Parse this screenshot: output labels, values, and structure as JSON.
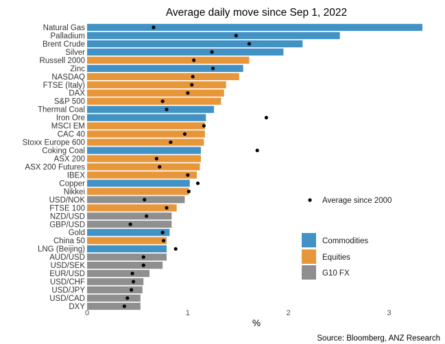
{
  "chart_data": {
    "type": "bar",
    "orientation": "horizontal",
    "title": "Average daily move since Sep 1, 2022",
    "xlabel": "%",
    "ylabel": "",
    "source": "Source: Bloomberg, ANZ Research",
    "xlim": [
      0,
      3.35
    ],
    "xticks": [
      0,
      1,
      2,
      3
    ],
    "grid": false,
    "colors": {
      "Commodities": "#4292c6",
      "Equities": "#e8963a",
      "G10 FX": "#8f8f8f",
      "marker": "#000000"
    },
    "marker_legend": "Average since 2000",
    "group_legend": [
      "Commodities",
      "Equities",
      "G10 FX"
    ],
    "legend_placement": "right",
    "categories": [
      "Natural Gas",
      "Palladium",
      "Brent Crude",
      "Silver",
      "Russell 2000",
      "Zinc",
      "NASDAQ",
      "FTSE (Italy)",
      "DAX",
      "S&P 500",
      "Thermal Coal",
      "Iron Ore",
      "MSCI EM",
      "CAC 40",
      "Stoxx Europe 600",
      "Coking Coal",
      "ASX 200",
      "ASX 200 Futures",
      "IBEX",
      "Copper",
      "Nikkei",
      "USD/NOK",
      "FTSE 100",
      "NZD/USD",
      "GBP/USD",
      "Gold",
      "China 50",
      "LNG (Beijing)",
      "AUD/USD",
      "USD/SEK",
      "EUR/USD",
      "USD/CHF",
      "USD/JPY",
      "USD/CAD",
      "DXY"
    ],
    "groups": [
      "Commodities",
      "Commodities",
      "Commodities",
      "Commodities",
      "Equities",
      "Commodities",
      "Equities",
      "Equities",
      "Equities",
      "Equities",
      "Commodities",
      "Commodities",
      "Equities",
      "Equities",
      "Equities",
      "Commodities",
      "Equities",
      "Equities",
      "Equities",
      "Commodities",
      "Equities",
      "G10 FX",
      "Equities",
      "G10 FX",
      "G10 FX",
      "Commodities",
      "Equities",
      "Commodities",
      "G10 FX",
      "G10 FX",
      "G10 FX",
      "G10 FX",
      "G10 FX",
      "G10 FX",
      "G10 FX"
    ],
    "values": [
      3.33,
      2.51,
      2.14,
      1.95,
      1.61,
      1.55,
      1.51,
      1.38,
      1.36,
      1.33,
      1.26,
      1.18,
      1.17,
      1.17,
      1.16,
      1.13,
      1.13,
      1.12,
      1.09,
      1.02,
      1.01,
      0.97,
      0.89,
      0.84,
      0.84,
      0.82,
      0.79,
      0.79,
      0.79,
      0.75,
      0.62,
      0.56,
      0.55,
      0.53,
      0.53
    ],
    "average_since_2000": [
      0.66,
      1.48,
      1.61,
      1.24,
      1.06,
      1.25,
      1.05,
      1.04,
      1.0,
      0.75,
      0.79,
      1.78,
      1.16,
      0.97,
      0.83,
      1.69,
      0.69,
      0.72,
      1.0,
      1.1,
      1.01,
      0.57,
      0.79,
      0.59,
      0.43,
      0.75,
      0.76,
      0.88,
      0.56,
      0.56,
      0.45,
      0.46,
      0.44,
      0.4,
      0.37
    ]
  }
}
